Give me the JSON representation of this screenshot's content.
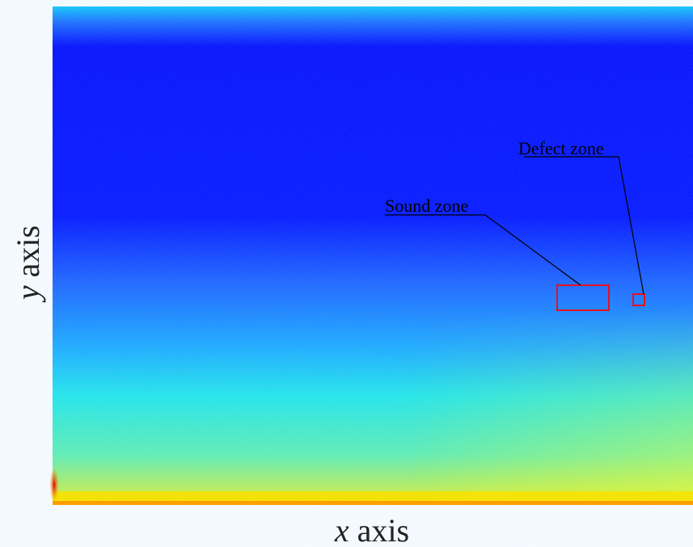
{
  "figure": {
    "x_label": {
      "symbol": "x",
      "word": "axis"
    },
    "y_label": {
      "symbol": "y",
      "word": "axis"
    },
    "annotations": [
      {
        "label": "Sound zone"
      },
      {
        "label": "Defect zone"
      }
    ]
  }
}
